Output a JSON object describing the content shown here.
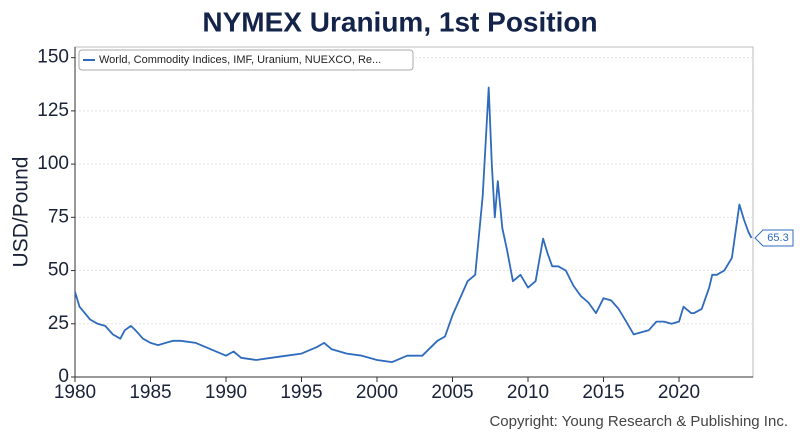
{
  "chart_data": {
    "type": "line",
    "title": "NYMEX Uranium, 1st Position",
    "y_label": "USD/Pound",
    "copyright": "Copyright: Young Research & Publishing Inc.",
    "legend_position": "top-left",
    "grid": true,
    "xlim": [
      1980,
      2024.9
    ],
    "xticks": [
      1980,
      1985,
      1990,
      1995,
      2000,
      2005,
      2010,
      2015,
      2020
    ],
    "ylim": [
      0,
      155
    ],
    "yticks": [
      0,
      25,
      50,
      75,
      100,
      125,
      150
    ],
    "x": [
      1980,
      1980.3,
      1981,
      1981.5,
      1982,
      1982.5,
      1983,
      1983.3,
      1983.7,
      1984,
      1984.5,
      1985,
      1985.5,
      1986,
      1986.5,
      1987,
      1988,
      1989,
      1990,
      1990.5,
      1991,
      1992,
      1993,
      1994,
      1995,
      1996,
      1996.5,
      1997,
      1998,
      1999,
      2000,
      2001,
      2002,
      2003,
      2004,
      2004.5,
      2005,
      2006,
      2006.5,
      2007,
      2007.4,
      2007.6,
      2007.8,
      2008,
      2008.3,
      2008.6,
      2009,
      2009.5,
      2010,
      2010.5,
      2011,
      2011.3,
      2011.6,
      2012,
      2012.5,
      2013,
      2013.5,
      2014,
      2014.5,
      2015,
      2015.5,
      2016,
      2016.5,
      2017,
      2017.5,
      2018,
      2018.5,
      2019,
      2019.5,
      2020,
      2020.3,
      2020.8,
      2021,
      2021.5,
      2022,
      2022.2,
      2022.5,
      2023,
      2023.5,
      2024,
      2024.3,
      2024.6,
      2024.8
    ],
    "series": [
      {
        "name": "World, Commodity Indices, IMF, Uranium, NUEXCO, Re...",
        "color": "#2f6bbd",
        "values": [
          40,
          33,
          27,
          25,
          24,
          20,
          18,
          22,
          24,
          22,
          18,
          16,
          15,
          16,
          17,
          17,
          16,
          13,
          10,
          12,
          9,
          8,
          9,
          10,
          11,
          14,
          16,
          13,
          11,
          10,
          8,
          7,
          10,
          10,
          17,
          19,
          29,
          45,
          48,
          85,
          136,
          100,
          75,
          92,
          70,
          60,
          45,
          48,
          42,
          45,
          65,
          58,
          52,
          52,
          50,
          43,
          38,
          35,
          30,
          37,
          36,
          32,
          26,
          20,
          21,
          22,
          26,
          26,
          25,
          26,
          33,
          30,
          30,
          32,
          42,
          48,
          48,
          50,
          56,
          81,
          74,
          68,
          65.3
        ]
      }
    ]
  }
}
